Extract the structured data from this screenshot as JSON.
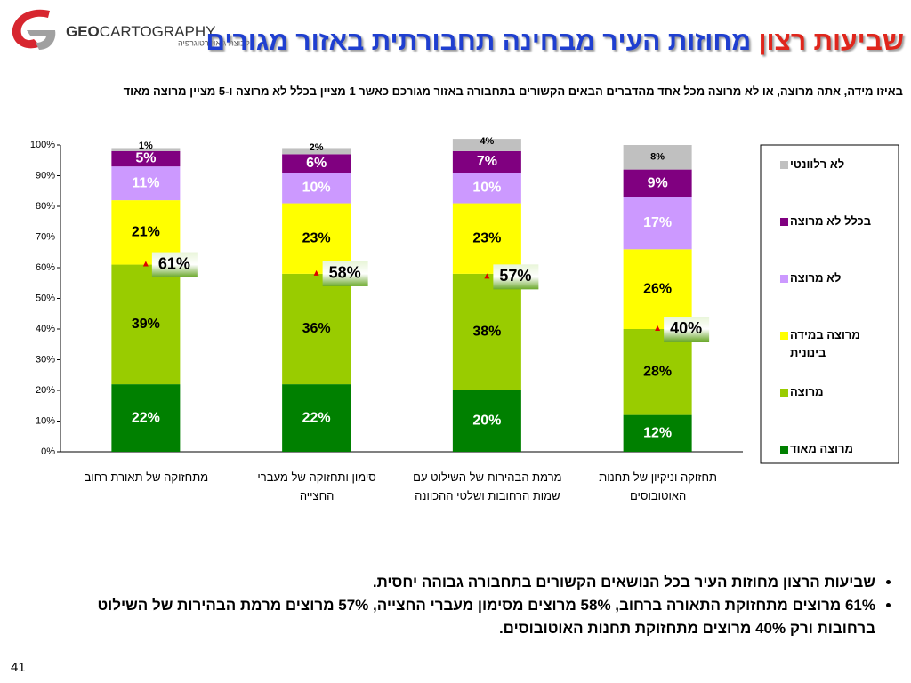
{
  "logo": {
    "brand_bold": "GEO",
    "brand_rest": "CARTOGRAPHY",
    "tagline": "קבוצת גיאוקרטוגרפיה"
  },
  "title": {
    "part1": "שביעות רצון",
    "part2": "מחוזות העיר מבחינה תחבורתית באזור מגורים"
  },
  "chart_data": {
    "type": "stacked_bar",
    "subtitle": "באיזו מידה, אתה מרוצה, או לא מרוצה מכל אחד מהדברים הבאים הקשורים בתחבורה באזור מגורכם כאשר 1 מציין בכלל לא מרוצה ו-5 מציין מרוצה מאוד",
    "categories": [
      "מתחזוקה של תאורת רחוב",
      "סימון ותחזוקה של מעברי החצייה",
      "מרמת הבהירות של השילוט עם שמות הרחובות ושלטי ההכוונה",
      "תחזוקה וניקיון של תחנות האוטובוסים"
    ],
    "series": [
      {
        "name": "מרוצה מאוד",
        "color": "#008000",
        "label_color": "#ffffff",
        "values": [
          22,
          22,
          20,
          12
        ],
        "value_labels": [
          "22%",
          "22%",
          "20%",
          "12%"
        ]
      },
      {
        "name": "מרוצה",
        "color": "#99cc00",
        "label_color": "#000000",
        "values": [
          39,
          36,
          38,
          28
        ],
        "value_labels": [
          "39%",
          "36%",
          "38%",
          "28%"
        ]
      },
      {
        "name": "מרוצה במידה בינונית",
        "color": "#ffff00",
        "label_color": "#000000",
        "values": [
          21,
          23,
          23,
          26
        ],
        "value_labels": [
          "21%",
          "23%",
          "23%",
          "26%"
        ]
      },
      {
        "name": "לא מרוצה",
        "color": "#cc99ff",
        "label_color": "#ffffff",
        "values": [
          11,
          10,
          10,
          17
        ],
        "value_labels": [
          "11%",
          "10%",
          "10%",
          "17%"
        ]
      },
      {
        "name": "בכלל לא מרוצה",
        "color": "#800080",
        "label_color": "#ffffff",
        "values": [
          5,
          6,
          7,
          9
        ],
        "value_labels": [
          "5%",
          "6%",
          "7%",
          "9%"
        ]
      },
      {
        "name": "לא רלוונטי",
        "color": "#c0c0c0",
        "label_color": "#000000",
        "values": [
          1,
          2,
          4,
          8
        ],
        "value_labels": [
          "1%",
          "2%",
          "4%",
          "8%"
        ]
      }
    ],
    "combined": {
      "values": [
        61,
        58,
        57,
        40
      ],
      "value_labels": [
        "61%",
        "58%",
        "57%",
        "40%"
      ]
    },
    "ylim": [
      0,
      100
    ],
    "yticks": [
      {
        "value": 0,
        "label": "0%"
      },
      {
        "value": 10,
        "label": "10%"
      },
      {
        "value": 20,
        "label": "20%"
      },
      {
        "value": 30,
        "label": "30%"
      },
      {
        "value": 40,
        "label": "40%"
      },
      {
        "value": 50,
        "label": "50%"
      },
      {
        "value": 60,
        "label": "60%"
      },
      {
        "value": 70,
        "label": "70%"
      },
      {
        "value": 80,
        "label": "80%"
      },
      {
        "value": 90,
        "label": "90%"
      },
      {
        "value": 100,
        "label": "100%"
      }
    ]
  },
  "bullets": [
    "שביעות הרצון מחוזות העיר בכל הנושאים הקשורים בתחבורה גבוהה יחסית.",
    "61% מרוצים מתחזוקת התאורה ברחוב, 58% מרוצים מסימון מעברי החצייה, 57% מרוצים מרמת הבהירות של השילוט ברחובות ורק 40% מרוצים מתחזוקת תחנות האוטובוסים."
  ],
  "page_number": "41"
}
